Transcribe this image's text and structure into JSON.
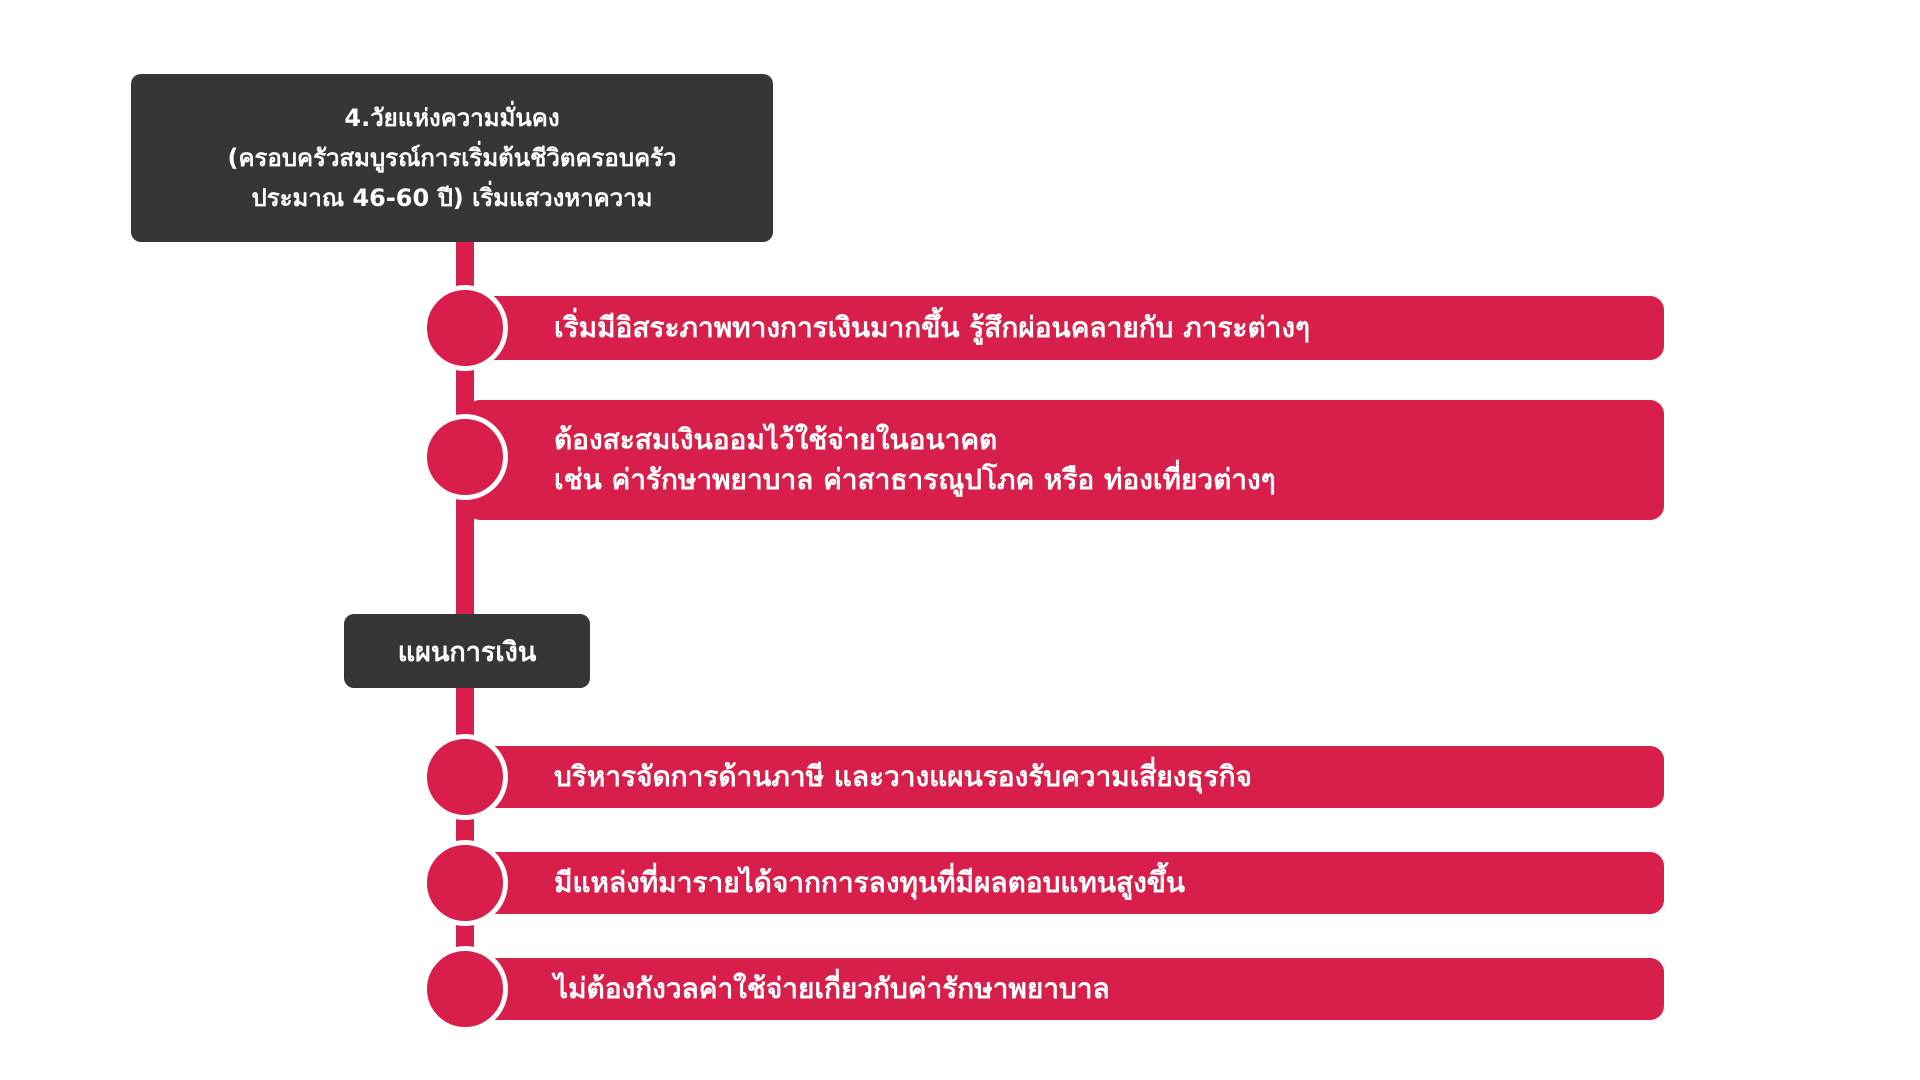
{
  "title_box": {
    "line1": "4.วัยแห่งความมั่นคง",
    "line2": "(ครอบครัวสมบูรณ์การเริ่มต้นชีวิตครอบครัว",
    "line3": "ประมาณ 46-60 ปี) เริ่มแสวงหาความ"
  },
  "items_top": [
    {
      "line1": "เริ่มมีอิสระภาพทางการเงินมากขึ้น รู้สึกผ่อนคลายกับ ภาระต่างๆ",
      "line2": ""
    },
    {
      "line1": "ต้องสะสมเงินออมไว้ใช้จ่ายในอนาคต",
      "line2": "เช่น ค่ารักษาพยาบาล ค่าสาธารณูปโภค หรือ ท่องเที่ยวต่างๆ"
    }
  ],
  "plan_label": "แผนการเงิน",
  "items_bottom": [
    {
      "text": "บริหารจัดการด้านภาษี และวางแผนรองรับความเสี่ยงธุรกิจ"
    },
    {
      "text": "มีแหล่งที่มารายได้จากการลงทุนที่มีผลตอบแทนสูงขึ้น"
    },
    {
      "text": "ไม่ต้องกังวลค่าใช้จ่ายเกี่ยวกับค่ารักษาพยาบาล"
    }
  ],
  "colors": {
    "accent": "#d81e4a",
    "dark": "#363636",
    "text_light": "#ffffff"
  }
}
